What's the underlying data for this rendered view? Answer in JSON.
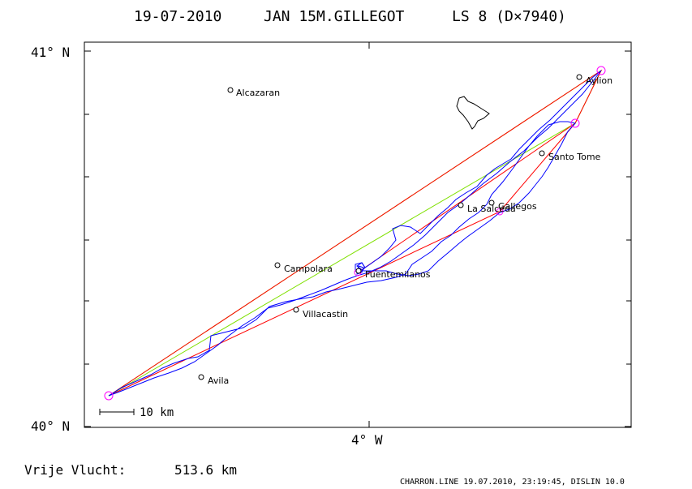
{
  "header": {
    "date": "19-07-2010",
    "pilot": "JAN 15M.GILLEGOT",
    "glider": "LS 8 (D×7940)"
  },
  "axes": {
    "lat_top": "41° N",
    "lat_bottom": "40° N",
    "lon_center": "4° W"
  },
  "scale_bar": {
    "label": "10 km"
  },
  "footer": {
    "distance_label": "Vrije Vlucht:",
    "distance_value": "513.6 km",
    "credit": "CHARRON.LINE 19.07.2010, 23:19:45, DISLIN 10.0"
  },
  "places": [
    {
      "name": "Alcazaran"
    },
    {
      "name": "Aylion"
    },
    {
      "name": "Santo Tome"
    },
    {
      "name": "Gallegos"
    },
    {
      "name": "La Salceda"
    },
    {
      "name": "Campolara"
    },
    {
      "name": "Fuentemilanos"
    },
    {
      "name": "Villacastin"
    },
    {
      "name": "Avila"
    }
  ],
  "colors": {
    "track": "#0000ff",
    "legs": "#ff0000",
    "triangle": "#7fe000",
    "turnpoint": "#ff00ff",
    "frame": "#000000"
  }
}
